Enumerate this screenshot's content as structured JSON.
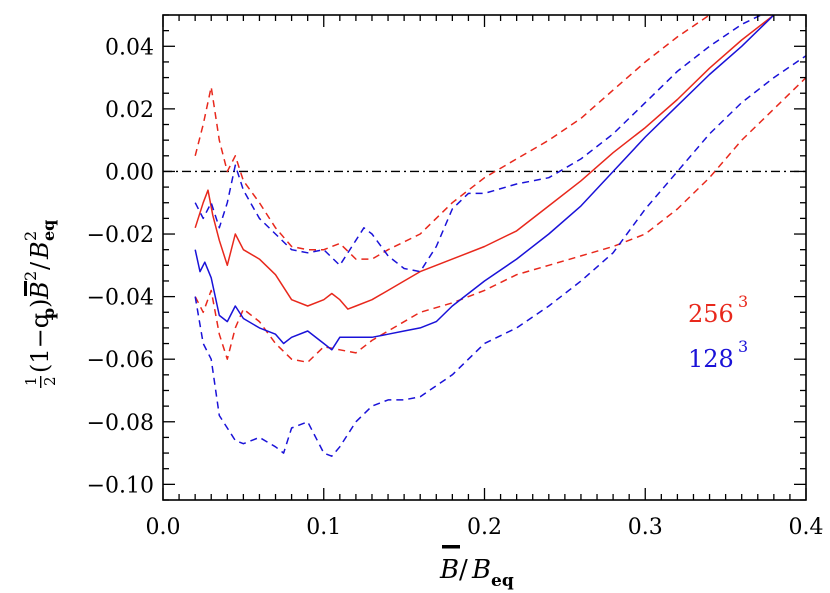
{
  "chart_data": {
    "type": "line",
    "xlabel": {
      "main": "B",
      "sep": "/",
      "base": "B",
      "sub": "eq"
    },
    "ylabel": {
      "frac_num": "1",
      "frac_den": "2",
      "text": "(1−q",
      "sub_p": "p",
      "close": ")",
      "b": "B",
      "sup2": "2",
      "sep": "/",
      "base": "B",
      "sup_eq": "2",
      "sub_eq": "eq"
    },
    "xlim": [
      0.0,
      0.4
    ],
    "ylim": [
      -0.105,
      0.05
    ],
    "xticks": [
      0.0,
      0.1,
      0.2,
      0.3,
      0.4
    ],
    "xtick_labels": [
      "0.0",
      "0.1",
      "0.2",
      "0.3",
      "0.4"
    ],
    "yticks": [
      -0.1,
      -0.08,
      -0.06,
      -0.04,
      -0.02,
      0.0,
      0.02,
      0.04
    ],
    "ytick_labels": [
      "−0.10",
      "−0.08",
      "−0.06",
      "−0.04",
      "−0.02",
      "0.00",
      "0.02",
      "0.04"
    ],
    "reference_line": {
      "y": 0.0,
      "style": "dash-dot",
      "color": "#000000"
    },
    "legend": {
      "placement": "right",
      "entries": [
        {
          "base": "256",
          "sup": "3",
          "color": "#e8281c"
        },
        {
          "base": "128",
          "sup": "3",
          "color": "#1a12d8"
        }
      ]
    },
    "series": [
      {
        "name": "256³",
        "color": "#e8281c",
        "style": "solid",
        "role": "mean",
        "x": [
          0.02,
          0.025,
          0.028,
          0.031,
          0.035,
          0.04,
          0.045,
          0.05,
          0.06,
          0.07,
          0.08,
          0.09,
          0.1,
          0.105,
          0.11,
          0.115,
          0.12,
          0.13,
          0.14,
          0.15,
          0.16,
          0.17,
          0.18,
          0.2,
          0.22,
          0.24,
          0.26,
          0.28,
          0.3,
          0.32,
          0.34,
          0.36,
          0.38,
          0.4
        ],
        "y": [
          -0.018,
          -0.01,
          -0.006,
          -0.014,
          -0.022,
          -0.03,
          -0.02,
          -0.025,
          -0.028,
          -0.033,
          -0.041,
          -0.043,
          -0.041,
          -0.039,
          -0.041,
          -0.044,
          -0.043,
          -0.041,
          -0.038,
          -0.035,
          -0.032,
          -0.03,
          -0.028,
          -0.024,
          -0.019,
          -0.011,
          -0.003,
          0.006,
          0.014,
          0.023,
          0.033,
          0.042,
          0.05,
          0.059
        ]
      },
      {
        "name": "256³ upper",
        "color": "#e8281c",
        "style": "dashed",
        "role": "upper",
        "x": [
          0.02,
          0.025,
          0.03,
          0.035,
          0.04,
          0.045,
          0.05,
          0.06,
          0.07,
          0.08,
          0.09,
          0.1,
          0.11,
          0.12,
          0.13,
          0.14,
          0.16,
          0.18,
          0.2,
          0.22,
          0.24,
          0.26,
          0.28,
          0.3,
          0.32,
          0.34,
          0.35
        ],
        "y": [
          0.005,
          0.015,
          0.027,
          0.01,
          0.0,
          0.005,
          -0.003,
          -0.01,
          -0.018,
          -0.024,
          -0.025,
          -0.025,
          -0.023,
          -0.028,
          -0.028,
          -0.025,
          -0.02,
          -0.01,
          -0.002,
          0.004,
          0.01,
          0.017,
          0.026,
          0.035,
          0.043,
          0.05,
          0.055
        ]
      },
      {
        "name": "256³ lower",
        "color": "#e8281c",
        "style": "dashed",
        "role": "lower",
        "x": [
          0.02,
          0.025,
          0.03,
          0.035,
          0.04,
          0.045,
          0.05,
          0.06,
          0.07,
          0.08,
          0.09,
          0.1,
          0.11,
          0.12,
          0.13,
          0.14,
          0.16,
          0.18,
          0.2,
          0.22,
          0.24,
          0.26,
          0.28,
          0.3,
          0.32,
          0.34,
          0.36,
          0.38,
          0.4
        ],
        "y": [
          -0.04,
          -0.045,
          -0.038,
          -0.052,
          -0.06,
          -0.05,
          -0.044,
          -0.048,
          -0.055,
          -0.06,
          -0.061,
          -0.056,
          -0.057,
          -0.058,
          -0.054,
          -0.051,
          -0.045,
          -0.042,
          -0.038,
          -0.033,
          -0.03,
          -0.027,
          -0.024,
          -0.02,
          -0.012,
          -0.002,
          0.01,
          0.02,
          0.03
        ]
      },
      {
        "name": "128³",
        "color": "#1a12d8",
        "style": "solid",
        "role": "mean",
        "x": [
          0.02,
          0.023,
          0.026,
          0.03,
          0.035,
          0.04,
          0.045,
          0.05,
          0.06,
          0.07,
          0.075,
          0.08,
          0.09,
          0.1,
          0.105,
          0.11,
          0.12,
          0.13,
          0.14,
          0.15,
          0.16,
          0.17,
          0.18,
          0.2,
          0.22,
          0.24,
          0.26,
          0.28,
          0.3,
          0.32,
          0.34,
          0.36,
          0.38,
          0.4
        ],
        "y": [
          -0.025,
          -0.032,
          -0.029,
          -0.034,
          -0.046,
          -0.048,
          -0.043,
          -0.047,
          -0.05,
          -0.052,
          -0.055,
          -0.053,
          -0.051,
          -0.055,
          -0.057,
          -0.053,
          -0.053,
          -0.053,
          -0.052,
          -0.051,
          -0.05,
          -0.048,
          -0.043,
          -0.035,
          -0.028,
          -0.02,
          -0.011,
          0.0,
          0.011,
          0.021,
          0.031,
          0.04,
          0.05,
          0.059
        ]
      },
      {
        "name": "128³ upper",
        "color": "#1a12d8",
        "style": "dashed",
        "role": "upper",
        "x": [
          0.02,
          0.025,
          0.03,
          0.035,
          0.04,
          0.045,
          0.05,
          0.06,
          0.07,
          0.08,
          0.09,
          0.1,
          0.11,
          0.12,
          0.125,
          0.13,
          0.14,
          0.15,
          0.16,
          0.17,
          0.18,
          0.19,
          0.2,
          0.22,
          0.24,
          0.26,
          0.28,
          0.3,
          0.32,
          0.34,
          0.36,
          0.38,
          0.4
        ],
        "y": [
          -0.01,
          -0.015,
          -0.01,
          -0.018,
          -0.01,
          0.002,
          -0.006,
          -0.015,
          -0.02,
          -0.025,
          -0.026,
          -0.025,
          -0.03,
          -0.022,
          -0.018,
          -0.02,
          -0.027,
          -0.031,
          -0.032,
          -0.024,
          -0.012,
          -0.007,
          -0.007,
          -0.004,
          -0.002,
          0.004,
          0.012,
          0.022,
          0.032,
          0.04,
          0.047,
          0.052,
          0.057
        ]
      },
      {
        "name": "128³ lower",
        "color": "#1a12d8",
        "style": "dashed",
        "role": "lower",
        "x": [
          0.02,
          0.025,
          0.03,
          0.035,
          0.04,
          0.045,
          0.05,
          0.06,
          0.07,
          0.075,
          0.08,
          0.09,
          0.1,
          0.105,
          0.11,
          0.12,
          0.13,
          0.14,
          0.15,
          0.16,
          0.18,
          0.2,
          0.22,
          0.24,
          0.26,
          0.28,
          0.3,
          0.32,
          0.34,
          0.36,
          0.38,
          0.4
        ],
        "y": [
          -0.04,
          -0.055,
          -0.06,
          -0.078,
          -0.082,
          -0.086,
          -0.087,
          -0.085,
          -0.088,
          -0.09,
          -0.082,
          -0.08,
          -0.09,
          -0.091,
          -0.088,
          -0.08,
          -0.075,
          -0.073,
          -0.073,
          -0.072,
          -0.065,
          -0.055,
          -0.05,
          -0.043,
          -0.035,
          -0.026,
          -0.012,
          0.0,
          0.012,
          0.022,
          0.03,
          0.037
        ]
      }
    ]
  }
}
